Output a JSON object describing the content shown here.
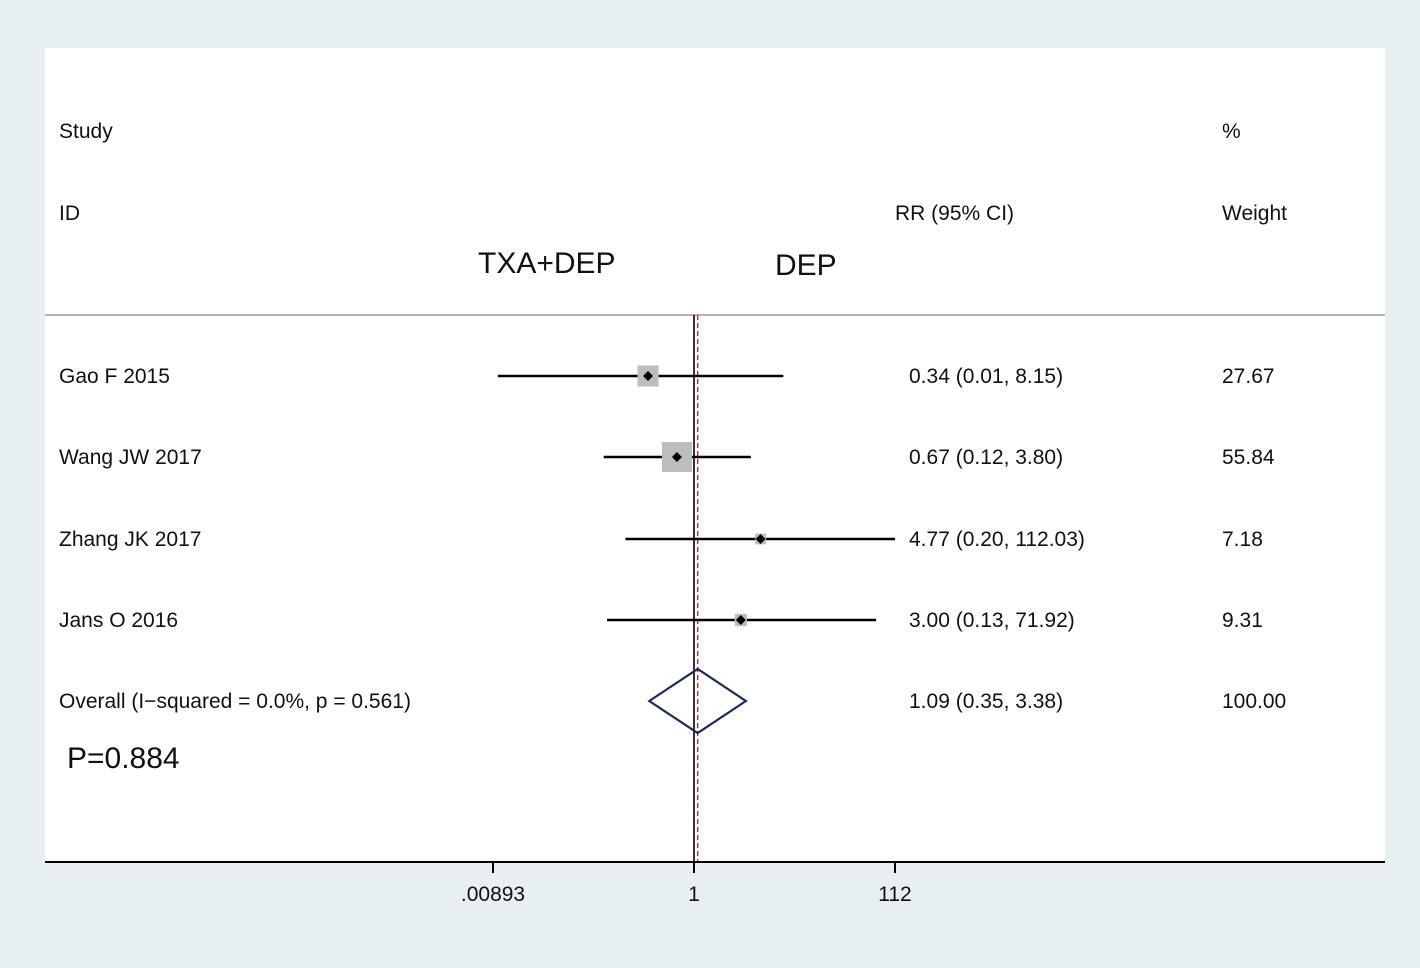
{
  "header": {
    "study_line1": "Study",
    "study_line2": "ID",
    "ci_header": "RR (95% CI)",
    "weight_line1": "%",
    "weight_line2": "Weight",
    "group_left": "TXA+DEP",
    "group_right": "DEP"
  },
  "p_value_label": "P=0.884",
  "colors": {
    "background": "#e8eff2",
    "panel": "#ffffff",
    "line": "#000000",
    "weight_box": "#bdbdbd",
    "diamond": "#1f2a55",
    "ref_dashed": "#b22222"
  },
  "chart_data": {
    "type": "forest",
    "measure": "RR",
    "x_scale": "log",
    "x_ticks": [
      0.00893,
      1,
      112
    ],
    "x_tick_labels": [
      ".00893",
      "1",
      "112"
    ],
    "null_value": 1,
    "pooled_line_value": 1.09,
    "studies": [
      {
        "label": "Gao F 2015",
        "rr": 0.34,
        "lo": 0.01,
        "hi": 8.15,
        "ci_text": "0.34 (0.01, 8.15)",
        "weight": 27.67,
        "weight_text": "27.67"
      },
      {
        "label": "Wang JW 2017",
        "rr": 0.67,
        "lo": 0.12,
        "hi": 3.8,
        "ci_text": "0.67 (0.12, 3.80)",
        "weight": 55.84,
        "weight_text": "55.84"
      },
      {
        "label": "Zhang JK 2017",
        "rr": 4.77,
        "lo": 0.2,
        "hi": 112.03,
        "ci_text": "4.77 (0.20, 112.03)",
        "weight": 7.18,
        "weight_text": "7.18"
      },
      {
        "label": "Jans O 2016",
        "rr": 3.0,
        "lo": 0.13,
        "hi": 71.92,
        "ci_text": "3.00 (0.13, 71.92)",
        "weight": 9.31,
        "weight_text": "9.31"
      }
    ],
    "overall": {
      "label": "Overall  (I−squared = 0.0%, p = 0.561)",
      "rr": 1.09,
      "lo": 0.35,
      "hi": 3.38,
      "ci_text": "1.09 (0.35, 3.38)",
      "weight": 100.0,
      "weight_text": "100.00"
    }
  }
}
